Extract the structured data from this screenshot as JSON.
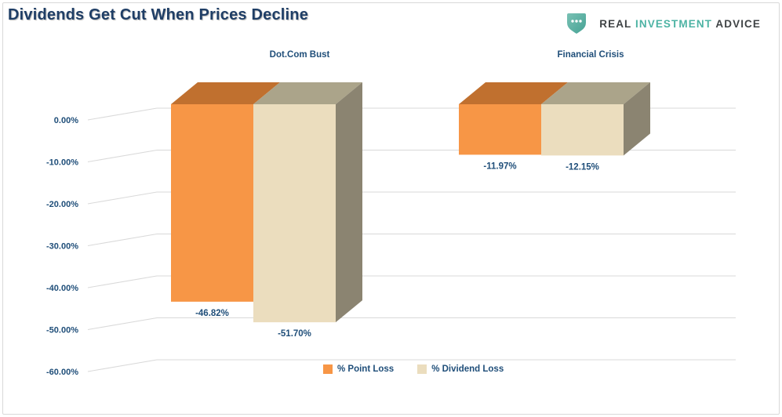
{
  "header": {
    "title": "Dividends Get Cut When Prices Decline",
    "logo": {
      "icon": "shield-dots-icon",
      "real": "REAL",
      "investment": "INVESTMENT",
      "advice": "ADVICE",
      "teal": "#4DB3A4",
      "charcoal": "#3F4345",
      "shield_fill_light": "#79C1B4",
      "shield_fill_dark": "#45A294"
    }
  },
  "chart_data": {
    "type": "bar",
    "style": "3d-clustered-column",
    "title": "Dividends Get Cut When Prices Decline",
    "categories": [
      "Dot.Com Bust",
      "Financial Crisis"
    ],
    "series": [
      {
        "name": "% Point Loss",
        "values": [
          -46.82,
          -11.97
        ],
        "color_front": "#F79646",
        "color_top": "#C0702F",
        "color_side": "#9A5A24"
      },
      {
        "name": "% Dividend Loss",
        "values": [
          -51.7,
          -12.15
        ],
        "color_front": "#EBDDBE",
        "color_top": "#ABA48A",
        "color_side": "#8B8471"
      }
    ],
    "data_labels": [
      [
        "-46.82%",
        "-11.97%"
      ],
      [
        "-51.70%",
        "-12.15%"
      ]
    ],
    "y_ticks": [
      "0.00%",
      "-10.00%",
      "-20.00%",
      "-30.00%",
      "-40.00%",
      "-50.00%",
      "-60.00%"
    ],
    "ylim": [
      -60,
      0
    ],
    "grid": true,
    "legend_position": "bottom",
    "axis_label_color": "#1F4E79",
    "gridline_color": "#D9D9D9",
    "xlabel": "",
    "ylabel": ""
  }
}
